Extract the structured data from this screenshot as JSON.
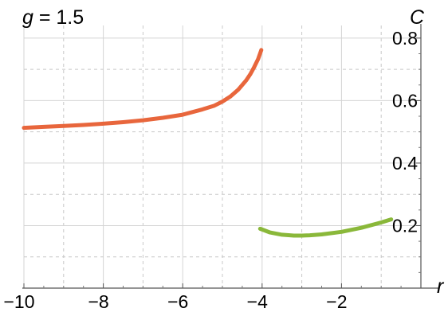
{
  "chart_data": {
    "type": "line",
    "title": "g = 1.5",
    "title_parts": {
      "var": "g",
      "rest": " = 1.5"
    },
    "xlabel": "r",
    "ylabel": "C",
    "xlim": [
      -10,
      0
    ],
    "ylim": [
      0,
      0.82
    ],
    "grid": true,
    "x_ticks": [
      {
        "value": -10,
        "label": "−10"
      },
      {
        "value": -8,
        "label": "−8"
      },
      {
        "value": -6,
        "label": "−6"
      },
      {
        "value": -4,
        "label": "−4"
      },
      {
        "value": -2,
        "label": "−2"
      }
    ],
    "y_ticks": [
      {
        "value": 0.2,
        "label": "0.2"
      },
      {
        "value": 0.4,
        "label": "0.4"
      },
      {
        "value": 0.6,
        "label": "0.6"
      },
      {
        "value": 0.8,
        "label": "0.8"
      }
    ],
    "series": [
      {
        "color": "#e8663c",
        "x": [
          -10,
          -9.5,
          -9,
          -8.5,
          -8,
          -7.5,
          -7,
          -6.5,
          -6,
          -5.5,
          -5.2,
          -5,
          -4.8,
          -4.6,
          -4.4,
          -4.3,
          -4.2,
          -4.1,
          -4.02
        ],
        "y": [
          0.513,
          0.516,
          0.519,
          0.522,
          0.526,
          0.531,
          0.537,
          0.545,
          0.555,
          0.572,
          0.584,
          0.597,
          0.613,
          0.635,
          0.665,
          0.684,
          0.707,
          0.733,
          0.762
        ]
      },
      {
        "color": "#8ab83a",
        "x": [
          -4.05,
          -3.8,
          -3.5,
          -3.2,
          -3.0,
          -2.8,
          -2.5,
          -2.0,
          -1.5,
          -1.0,
          -0.75
        ],
        "y": [
          0.19,
          0.178,
          0.171,
          0.168,
          0.168,
          0.169,
          0.172,
          0.18,
          0.193,
          0.21,
          0.22
        ]
      }
    ]
  }
}
